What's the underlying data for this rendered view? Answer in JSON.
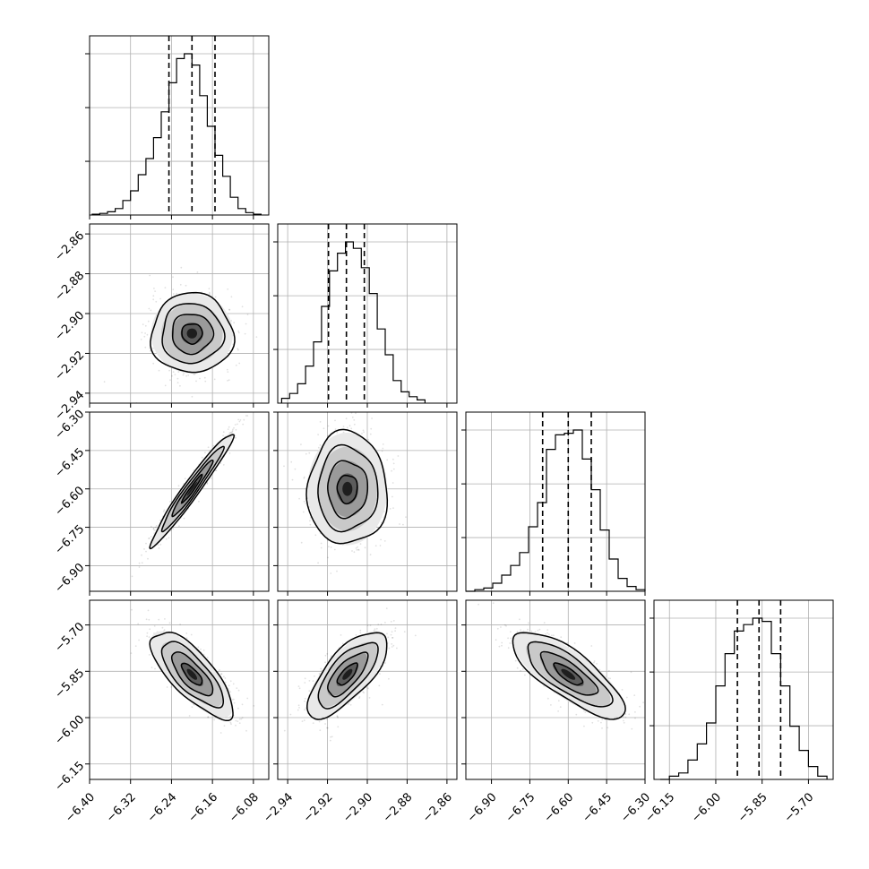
{
  "chart_data": {
    "type": "corner",
    "title": "",
    "grid": true,
    "colors": {
      "line": "#000000",
      "grid": "#b0b0b0",
      "scatter": "#000000"
    },
    "parameters": [
      {
        "id": "p1",
        "range": [
          -6.4,
          -6.05
        ],
        "xticks": [
          "-6.40",
          "-6.32",
          "-6.24",
          "-6.16",
          "-6.08"
        ],
        "xtick_values": [
          -6.4,
          -6.32,
          -6.24,
          -6.16,
          -6.08
        ],
        "yticks": [],
        "ytick_values": [],
        "quantiles": [
          -6.245,
          -6.2,
          -6.155
        ],
        "hist_edges": [
          -6.395,
          -6.38,
          -6.365,
          -6.35,
          -6.335,
          -6.32,
          -6.305,
          -6.29,
          -6.275,
          -6.26,
          -6.245,
          -6.23,
          -6.215,
          -6.2,
          -6.185,
          -6.17,
          -6.155,
          -6.14,
          -6.125,
          -6.11,
          -6.095,
          -6.08,
          -6.065
        ],
        "hist_counts": [
          0.005,
          0.01,
          0.02,
          0.04,
          0.09,
          0.15,
          0.25,
          0.35,
          0.48,
          0.64,
          0.82,
          0.97,
          1.0,
          0.93,
          0.74,
          0.55,
          0.37,
          0.24,
          0.11,
          0.04,
          0.015,
          0.005
        ]
      },
      {
        "id": "p2",
        "range": [
          -2.945,
          -2.855
        ],
        "xticks": [
          "-2.94",
          "-2.92",
          "-2.90",
          "-2.88",
          "-2.86"
        ],
        "xtick_values": [
          -2.94,
          -2.92,
          -2.9,
          -2.88,
          -2.86
        ],
        "yticks": [
          "-2.86",
          "-2.88",
          "-2.90",
          "-2.92",
          "-2.94"
        ],
        "ytick_values": [
          -2.86,
          -2.88,
          -2.9,
          -2.92,
          -2.94
        ],
        "quantiles": [
          -2.9195,
          -2.9105,
          -2.9015
        ],
        "hist_edges": [
          -2.943,
          -2.939,
          -2.935,
          -2.931,
          -2.927,
          -2.923,
          -2.919,
          -2.915,
          -2.911,
          -2.907,
          -2.903,
          -2.899,
          -2.895,
          -2.891,
          -2.887,
          -2.883,
          -2.879,
          -2.875,
          -2.871
        ],
        "hist_counts": [
          0.03,
          0.06,
          0.12,
          0.23,
          0.38,
          0.6,
          0.82,
          0.93,
          1.0,
          0.96,
          0.84,
          0.68,
          0.46,
          0.3,
          0.14,
          0.07,
          0.04,
          0.02
        ]
      },
      {
        "id": "p3",
        "range": [
          -7.0,
          -6.3
        ],
        "xticks": [
          "-6.90",
          "-6.75",
          "-6.60",
          "-6.45",
          "-6.30"
        ],
        "xtick_values": [
          -6.9,
          -6.75,
          -6.6,
          -6.45,
          -6.3
        ],
        "yticks": [
          "-6.30",
          "-6.45",
          "-6.60",
          "-6.75",
          "-6.90"
        ],
        "ytick_values": [
          -6.3,
          -6.45,
          -6.6,
          -6.75,
          -6.9
        ],
        "quantiles": [
          -6.7,
          -6.6,
          -6.51
        ],
        "hist_edges": [
          -7.0,
          -6.965,
          -6.93,
          -6.895,
          -6.86,
          -6.825,
          -6.79,
          -6.755,
          -6.72,
          -6.685,
          -6.65,
          -6.615,
          -6.58,
          -6.545,
          -6.51,
          -6.475,
          -6.44,
          -6.405,
          -6.37,
          -6.335,
          -6.3
        ],
        "hist_counts": [
          0.0,
          0.01,
          0.02,
          0.05,
          0.1,
          0.16,
          0.24,
          0.4,
          0.55,
          0.88,
          0.97,
          0.98,
          1.0,
          0.82,
          0.63,
          0.38,
          0.2,
          0.08,
          0.03,
          0.01
        ]
      },
      {
        "id": "p4",
        "range": [
          -6.2,
          -5.62
        ],
        "xticks": [
          "-6.15",
          "-6.00",
          "-5.85",
          "-5.70"
        ],
        "xtick_values": [
          -6.15,
          -6.0,
          -5.85,
          -5.7
        ],
        "yticks": [
          "-5.70",
          "-5.85",
          "-6.00",
          "-6.15"
        ],
        "ytick_values": [
          -5.7,
          -5.85,
          -6.0,
          -6.15
        ],
        "quantiles": [
          -5.93,
          -5.86,
          -5.79
        ],
        "hist_edges": [
          -6.18,
          -6.15,
          -6.12,
          -6.09,
          -6.06,
          -6.03,
          -6.0,
          -5.97,
          -5.94,
          -5.91,
          -5.88,
          -5.85,
          -5.82,
          -5.79,
          -5.76,
          -5.73,
          -5.7,
          -5.67,
          -5.64
        ],
        "hist_counts": [
          0.0,
          0.02,
          0.04,
          0.12,
          0.22,
          0.35,
          0.58,
          0.78,
          0.92,
          0.96,
          1.0,
          0.98,
          0.78,
          0.58,
          0.33,
          0.18,
          0.08,
          0.02
        ]
      }
    ],
    "pairs": [
      {
        "x": "p1",
        "y": "p2",
        "center": [
          -6.2,
          -2.91
        ],
        "sigma": [
          0.04,
          0.01
        ],
        "corr": 0.0,
        "blob_tilt": 0.0
      },
      {
        "x": "p1",
        "y": "p3",
        "center": [
          -6.2,
          -6.6
        ],
        "sigma": [
          0.04,
          0.11
        ],
        "corr": 0.97,
        "blob_tilt": 0.0
      },
      {
        "x": "p2",
        "y": "p3",
        "center": [
          -2.91,
          -6.6
        ],
        "sigma": [
          0.01,
          0.11
        ],
        "corr": 0.0,
        "blob_tilt": 0.0
      },
      {
        "x": "p1",
        "y": "p4",
        "center": [
          -6.2,
          -5.86
        ],
        "sigma": [
          0.04,
          0.07
        ],
        "corr": -0.75,
        "blob_tilt": 0.0
      },
      {
        "x": "p2",
        "y": "p4",
        "center": [
          -2.91,
          -5.86
        ],
        "sigma": [
          0.01,
          0.07
        ],
        "corr": 0.72,
        "blob_tilt": 0.0
      },
      {
        "x": "p3",
        "y": "p4",
        "center": [
          -6.6,
          -5.86
        ],
        "sigma": [
          0.11,
          0.07
        ],
        "corr": -0.78,
        "blob_tilt": 0.0
      }
    ],
    "contour_levels_sigma": [
      0.5,
      1.0,
      1.5,
      2.0
    ]
  }
}
